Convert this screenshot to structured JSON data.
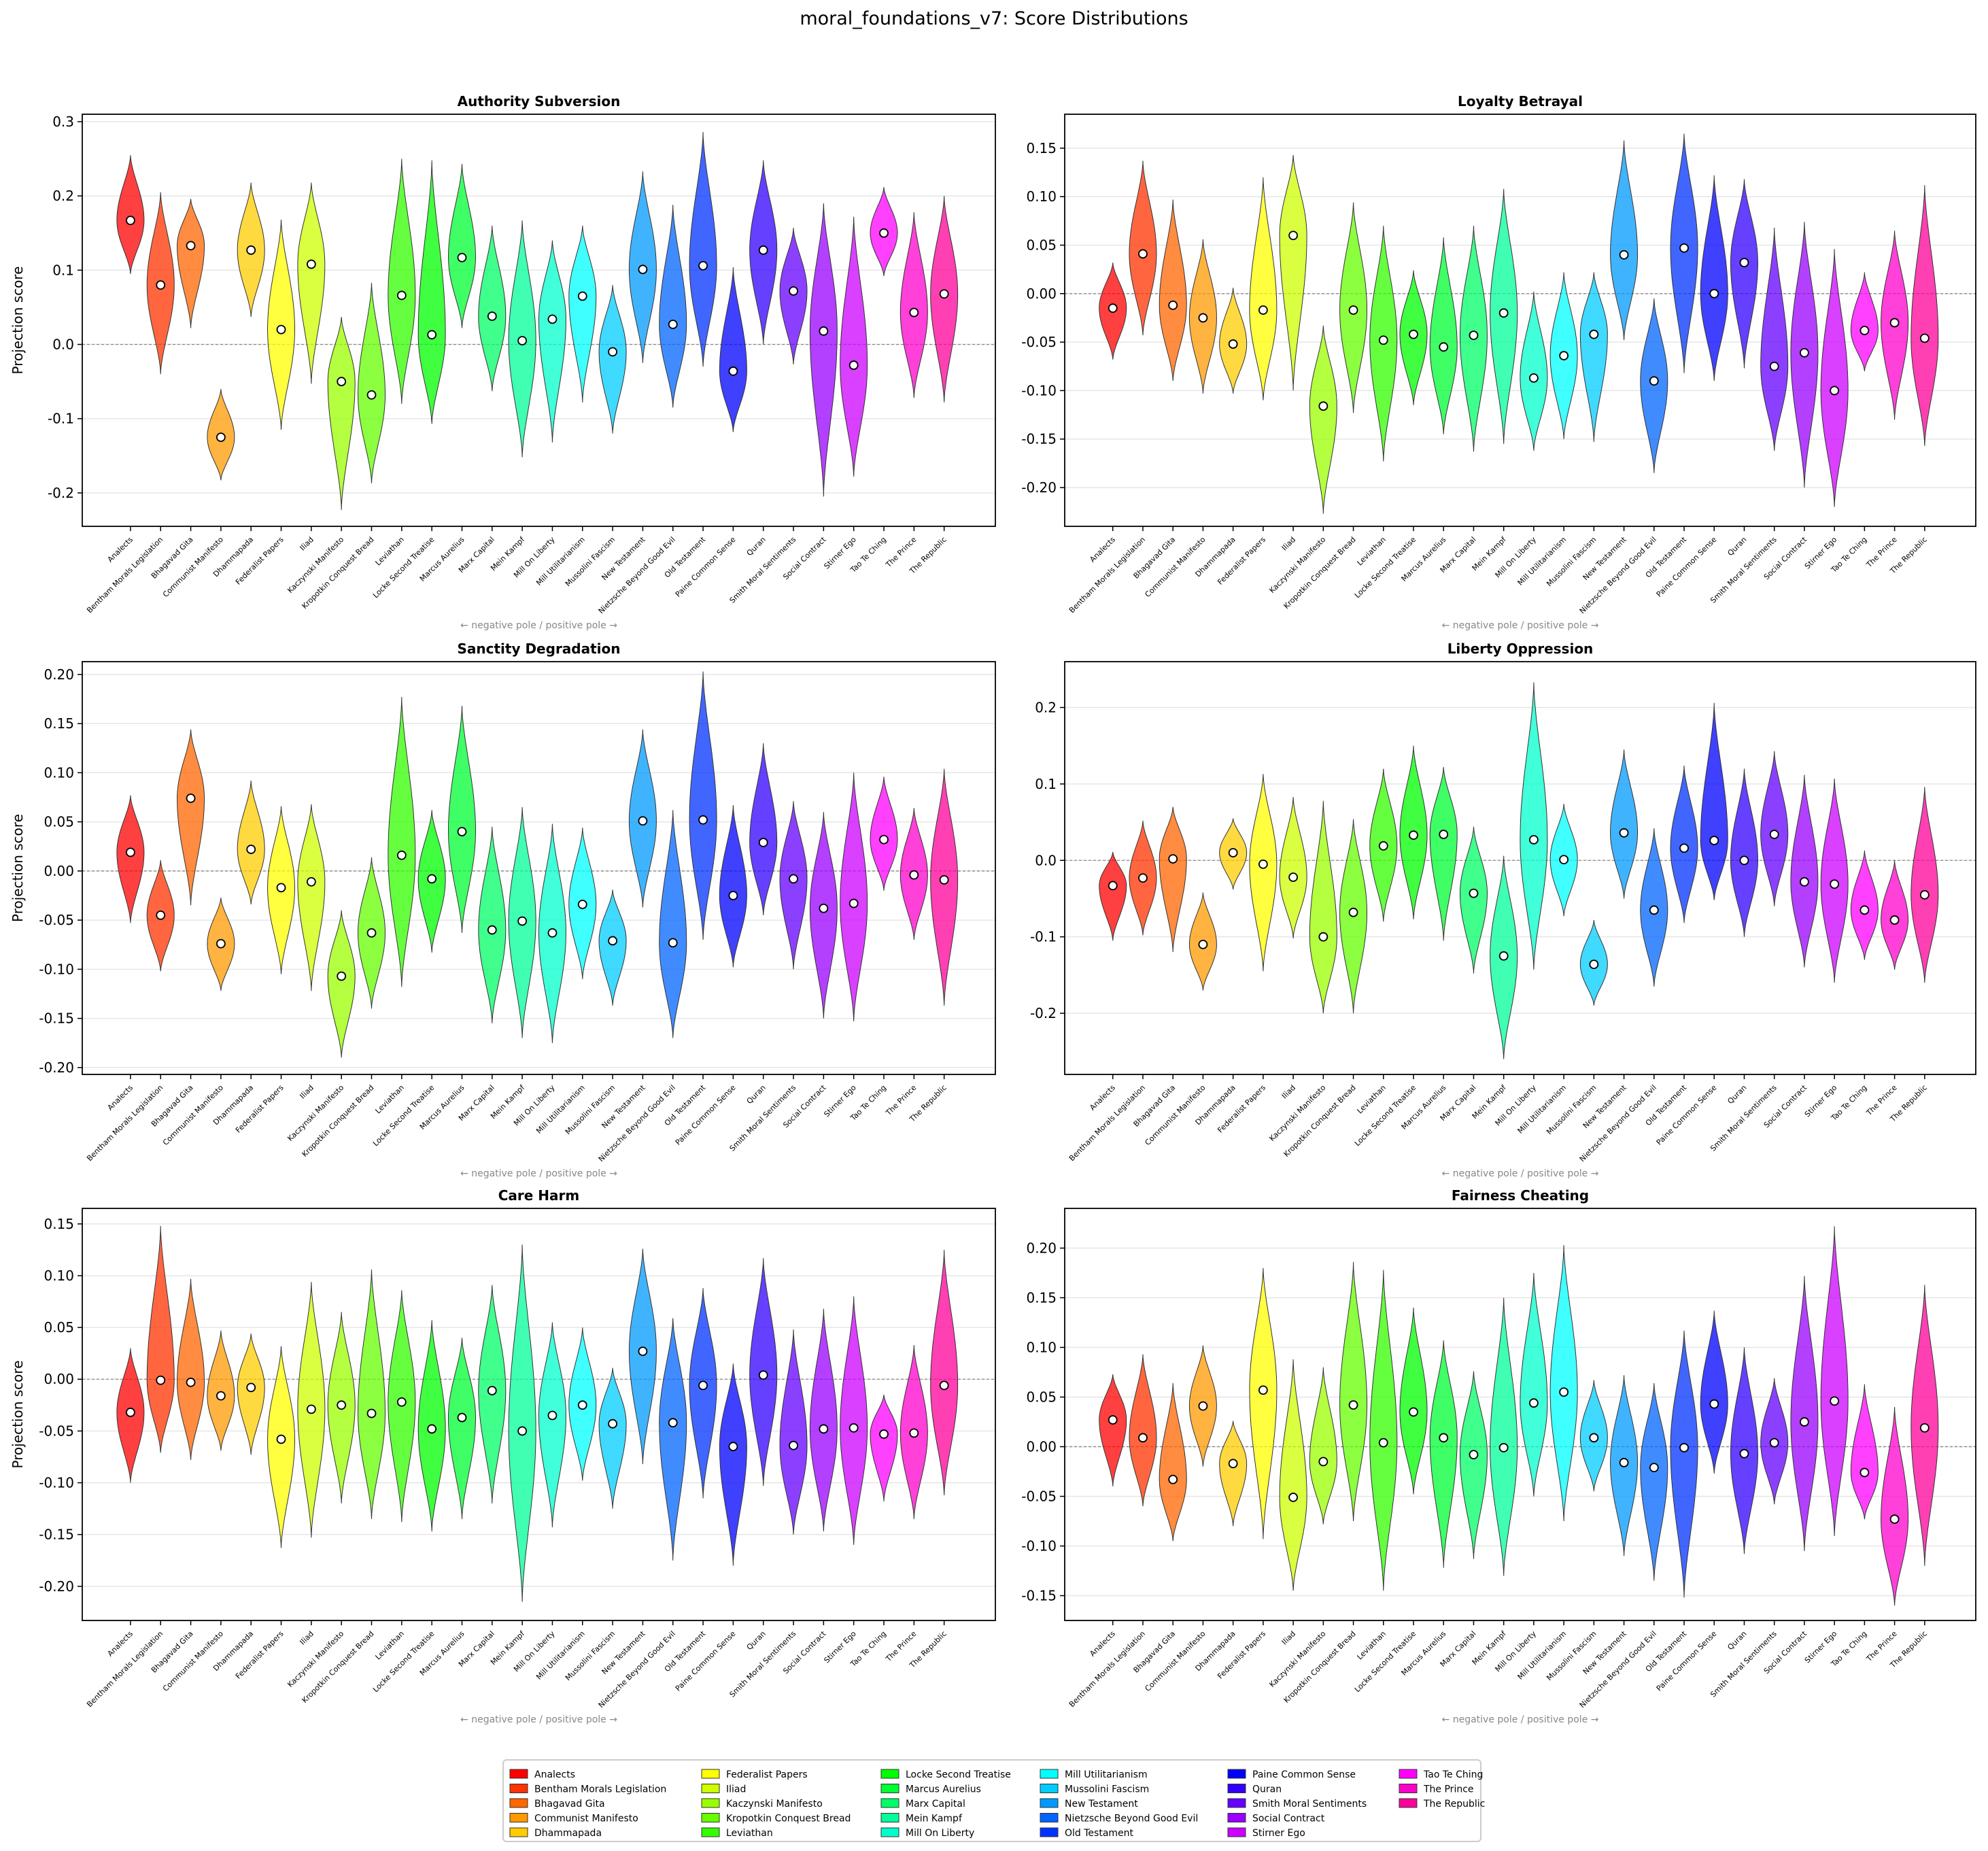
{
  "suptitle": "moral_foundations_v7: Score Distributions",
  "categories": [
    "Analects",
    "Bentham Morals Legislation",
    "Bhagavad Gita",
    "Communist Manifesto",
    "Dhammapada",
    "Federalist Papers",
    "Iliad",
    "Kaczynski Manifesto",
    "Kropotkin Conquest Bread",
    "Leviathan",
    "Locke Second Treatise",
    "Marcus Aurelius",
    "Marx Capital",
    "Mein Kampf",
    "Mill On Liberty",
    "Mill Utilitarianism",
    "Mussolini Fascism",
    "New Testament",
    "Nietzsche Beyond Good Evil",
    "Old Testament",
    "Paine Common Sense",
    "Quran",
    "Smith Moral Sentiments",
    "Social Contract",
    "Stirner Ego",
    "Tao Te Ching",
    "The Prince",
    "The Republic"
  ],
  "colors": [
    "#ff0000",
    "#ff3300",
    "#ff6600",
    "#ff9900",
    "#ffcc00",
    "#ffff00",
    "#ccff00",
    "#99ff00",
    "#66ff00",
    "#33ff00",
    "#00ff00",
    "#00ff33",
    "#00ff66",
    "#00ff99",
    "#00ffcc",
    "#00ffff",
    "#00ccff",
    "#0099ff",
    "#0066ff",
    "#0033ff",
    "#0000ff",
    "#3300ff",
    "#6600ff",
    "#9900ff",
    "#cc00ff",
    "#ff00ff",
    "#ff00cc",
    "#ff0099"
  ],
  "chart_data": [
    {
      "type": "violin",
      "title": "Authority Subversion",
      "ylabel": "Projection score",
      "xlabel": "← negative pole   /   positive pole →",
      "ylim": [
        -0.245,
        0.31
      ],
      "yticks": [
        "-0.2",
        "-0.1",
        "0.0",
        "0.1",
        "0.2",
        "0.3"
      ],
      "grid": true,
      "reference_line": 0,
      "mean": [
        0.167,
        0.08,
        0.133,
        -0.125,
        0.127,
        0.02,
        0.108,
        -0.05,
        -0.068,
        0.066,
        0.013,
        0.117,
        0.038,
        0.005,
        0.034,
        0.065,
        -0.01,
        0.101,
        0.027,
        0.106,
        -0.036,
        0.127,
        0.072,
        0.018,
        -0.028,
        0.15,
        0.043,
        0.068
      ],
      "min": [
        0.095,
        -0.04,
        0.022,
        -0.183,
        0.037,
        -0.115,
        -0.053,
        -0.223,
        -0.187,
        -0.08,
        -0.107,
        0.022,
        -0.063,
        -0.152,
        -0.132,
        -0.078,
        -0.12,
        -0.025,
        -0.085,
        -0.03,
        -0.118,
        0.0,
        -0.027,
        -0.205,
        -0.178,
        0.092,
        -0.072,
        -0.078
      ],
      "max": [
        0.255,
        0.205,
        0.196,
        -0.06,
        0.218,
        0.168,
        0.218,
        0.037,
        0.083,
        0.25,
        0.248,
        0.243,
        0.16,
        0.167,
        0.14,
        0.16,
        0.08,
        0.233,
        0.188,
        0.286,
        0.104,
        0.248,
        0.157,
        0.19,
        0.172,
        0.212,
        0.178,
        0.2
      ]
    },
    {
      "type": "violin",
      "title": "Loyalty Betrayal",
      "ylabel": "",
      "xlabel": "← negative pole   /   positive pole →",
      "ylim": [
        -0.24,
        0.185
      ],
      "yticks": [
        "-0.20",
        "-0.15",
        "-0.10",
        "-0.05",
        "0.00",
        "0.05",
        "0.10",
        "0.15"
      ],
      "grid": true,
      "reference_line": 0,
      "mean": [
        -0.015,
        0.041,
        -0.012,
        -0.025,
        -0.052,
        -0.017,
        0.06,
        -0.116,
        -0.017,
        -0.048,
        -0.042,
        -0.055,
        -0.043,
        -0.02,
        -0.087,
        -0.064,
        -0.042,
        0.04,
        -0.09,
        0.047,
        0.0,
        0.032,
        -0.075,
        -0.061,
        -0.1,
        -0.038,
        -0.03,
        -0.046
      ],
      "min": [
        -0.068,
        -0.043,
        -0.09,
        -0.103,
        -0.103,
        -0.11,
        -0.1,
        -0.227,
        -0.123,
        -0.173,
        -0.115,
        -0.145,
        -0.163,
        -0.155,
        -0.162,
        -0.15,
        -0.153,
        -0.048,
        -0.185,
        -0.082,
        -0.09,
        -0.077,
        -0.162,
        -0.2,
        -0.22,
        -0.08,
        -0.13,
        -0.157
      ],
      "max": [
        0.032,
        0.137,
        0.097,
        0.056,
        0.006,
        0.12,
        0.143,
        -0.033,
        0.094,
        0.07,
        0.024,
        0.058,
        0.07,
        0.108,
        0.002,
        0.022,
        0.022,
        0.158,
        -0.005,
        0.165,
        0.122,
        0.118,
        0.068,
        0.074,
        0.046,
        0.022,
        0.065,
        0.112
      ]
    },
    {
      "type": "violin",
      "title": "Sanctity Degradation",
      "ylabel": "Projection score",
      "xlabel": "← negative pole   /   positive pole →",
      "ylim": [
        -0.207,
        0.213
      ],
      "yticks": [
        "-0.20",
        "-0.15",
        "-0.10",
        "-0.05",
        "0.00",
        "0.05",
        "0.10",
        "0.15",
        "0.20"
      ],
      "grid": true,
      "reference_line": 0,
      "mean": [
        0.019,
        -0.045,
        0.074,
        -0.074,
        0.022,
        -0.017,
        -0.011,
        -0.107,
        -0.063,
        0.016,
        -0.008,
        0.04,
        -0.06,
        -0.051,
        -0.063,
        -0.034,
        -0.071,
        0.051,
        -0.073,
        0.052,
        -0.025,
        0.029,
        -0.008,
        -0.038,
        -0.033,
        0.032,
        -0.004,
        -0.009
      ],
      "min": [
        -0.053,
        -0.102,
        -0.035,
        -0.122,
        -0.034,
        -0.105,
        -0.122,
        -0.19,
        -0.14,
        -0.118,
        -0.083,
        -0.063,
        -0.155,
        -0.17,
        -0.175,
        -0.11,
        -0.137,
        -0.037,
        -0.17,
        -0.07,
        -0.098,
        -0.045,
        -0.1,
        -0.15,
        -0.153,
        -0.02,
        -0.07,
        -0.137
      ],
      "max": [
        0.077,
        0.011,
        0.144,
        -0.027,
        0.092,
        0.066,
        0.068,
        -0.04,
        0.014,
        0.177,
        0.062,
        0.168,
        0.045,
        0.065,
        0.048,
        0.044,
        -0.019,
        0.144,
        0.062,
        0.203,
        0.067,
        0.13,
        0.071,
        0.06,
        0.1,
        0.096,
        0.064,
        0.104
      ]
    },
    {
      "type": "violin",
      "title": "Liberty Oppression",
      "ylabel": "",
      "xlabel": "← negative pole   /   positive pole →",
      "ylim": [
        -0.28,
        0.26
      ],
      "yticks": [
        "-0.2",
        "-0.1",
        "0.0",
        "0.1",
        "0.2"
      ],
      "grid": true,
      "reference_line": 0,
      "mean": [
        -0.033,
        -0.023,
        0.002,
        -0.11,
        0.01,
        -0.005,
        -0.022,
        -0.1,
        -0.068,
        0.019,
        0.033,
        0.034,
        -0.043,
        -0.125,
        0.027,
        0.001,
        -0.136,
        0.036,
        -0.065,
        0.016,
        0.026,
        0.0,
        0.034,
        -0.028,
        -0.031,
        -0.065,
        -0.078,
        -0.045
      ],
      "min": [
        -0.105,
        -0.098,
        -0.12,
        -0.17,
        -0.038,
        -0.145,
        -0.102,
        -0.2,
        -0.2,
        -0.08,
        -0.077,
        -0.105,
        -0.148,
        -0.26,
        -0.143,
        -0.073,
        -0.19,
        -0.05,
        -0.165,
        -0.082,
        -0.052,
        -0.1,
        -0.06,
        -0.14,
        -0.16,
        -0.13,
        -0.143,
        -0.16
      ],
      "max": [
        0.011,
        0.052,
        0.07,
        -0.042,
        0.055,
        0.113,
        0.083,
        0.078,
        0.054,
        0.12,
        0.15,
        0.122,
        0.044,
        0.006,
        0.233,
        0.074,
        -0.078,
        0.145,
        0.042,
        0.124,
        0.206,
        0.12,
        0.143,
        0.112,
        0.107,
        0.013,
        0.0,
        0.096
      ]
    },
    {
      "type": "violin",
      "title": "Care Harm",
      "ylabel": "Projection score",
      "xlabel": "← negative pole   /   positive pole →",
      "ylim": [
        -0.233,
        0.165
      ],
      "yticks": [
        "-0.20",
        "-0.15",
        "-0.10",
        "-0.05",
        "0.00",
        "0.05",
        "0.10",
        "0.15"
      ],
      "grid": true,
      "reference_line": 0,
      "mean": [
        -0.032,
        -0.001,
        -0.003,
        -0.016,
        -0.008,
        -0.058,
        -0.029,
        -0.025,
        -0.033,
        -0.022,
        -0.048,
        -0.037,
        -0.011,
        -0.05,
        -0.035,
        -0.025,
        -0.043,
        0.027,
        -0.042,
        -0.006,
        -0.065,
        0.004,
        -0.064,
        -0.048,
        -0.047,
        -0.053,
        -0.052,
        -0.006
      ],
      "min": [
        -0.1,
        -0.071,
        -0.078,
        -0.069,
        -0.073,
        -0.163,
        -0.153,
        -0.12,
        -0.135,
        -0.138,
        -0.147,
        -0.135,
        -0.12,
        -0.215,
        -0.143,
        -0.098,
        -0.125,
        -0.082,
        -0.175,
        -0.115,
        -0.18,
        -0.103,
        -0.15,
        -0.147,
        -0.16,
        -0.118,
        -0.135,
        -0.112
      ],
      "max": [
        0.03,
        0.148,
        0.097,
        0.047,
        0.044,
        0.032,
        0.094,
        0.065,
        0.106,
        0.086,
        0.057,
        0.04,
        0.091,
        0.13,
        0.055,
        0.05,
        0.011,
        0.126,
        0.059,
        0.088,
        0.015,
        0.117,
        0.048,
        0.068,
        0.08,
        -0.015,
        0.033,
        0.125
      ]
    },
    {
      "type": "violin",
      "title": "Fairness Cheating",
      "ylabel": "",
      "xlabel": "← negative pole   /   positive pole →",
      "ylim": [
        -0.175,
        0.24
      ],
      "yticks": [
        "-0.15",
        "-0.10",
        "-0.05",
        "0.00",
        "0.05",
        "0.10",
        "0.15",
        "0.20"
      ],
      "grid": true,
      "reference_line": 0,
      "mean": [
        0.027,
        0.009,
        -0.033,
        0.041,
        -0.017,
        0.057,
        -0.051,
        -0.015,
        0.042,
        0.004,
        0.035,
        0.009,
        -0.008,
        -0.001,
        0.044,
        0.055,
        0.009,
        -0.016,
        -0.021,
        -0.001,
        0.043,
        -0.007,
        0.004,
        0.025,
        0.046,
        -0.026,
        -0.073,
        0.019
      ],
      "min": [
        -0.04,
        -0.06,
        -0.095,
        -0.02,
        -0.08,
        -0.093,
        -0.145,
        -0.078,
        -0.075,
        -0.145,
        -0.048,
        -0.122,
        -0.113,
        -0.13,
        -0.05,
        -0.075,
        -0.045,
        -0.11,
        -0.135,
        -0.152,
        -0.027,
        -0.108,
        -0.058,
        -0.105,
        -0.09,
        -0.073,
        -0.16,
        -0.12
      ],
      "max": [
        0.073,
        0.093,
        0.064,
        0.102,
        0.026,
        0.18,
        0.088,
        0.08,
        0.186,
        0.178,
        0.14,
        0.107,
        0.076,
        0.15,
        0.175,
        0.203,
        0.067,
        0.072,
        0.064,
        0.117,
        0.137,
        0.1,
        0.069,
        0.172,
        0.222,
        0.063,
        0.04,
        0.163
      ]
    }
  ],
  "legend": {
    "placement": "bottom-center",
    "columns": 6
  }
}
